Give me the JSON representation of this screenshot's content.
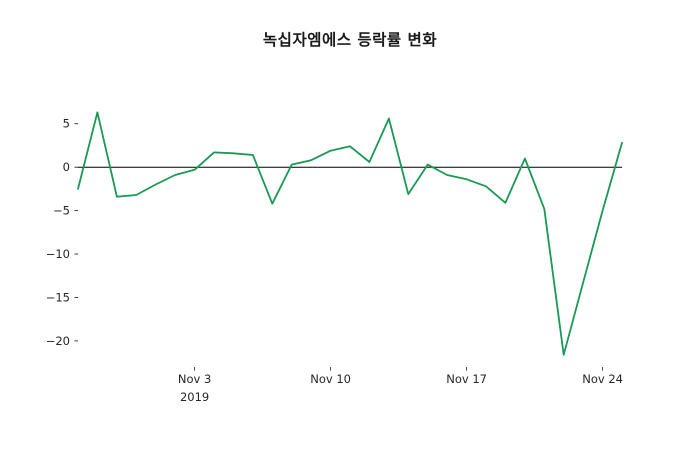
{
  "chart_data": {
    "type": "line",
    "title": "녹십자엠에스 등락률 변화",
    "series": [
      {
        "name": "등락률 (%)",
        "x": [
          "Oct 28",
          "Oct 29",
          "Oct 30",
          "Oct 31",
          "Nov 1",
          "Nov 2",
          "Nov 3",
          "Nov 4",
          "Nov 5",
          "Nov 6",
          "Nov 7",
          "Nov 8",
          "Nov 9",
          "Nov 10",
          "Nov 11",
          "Nov 12",
          "Nov 13",
          "Nov 14",
          "Nov 15",
          "Nov 16",
          "Nov 17",
          "Nov 18",
          "Nov 19",
          "Nov 20",
          "Nov 21",
          "Nov 22",
          "Nov 23",
          "Nov 24",
          "Nov 25"
        ],
        "values": [
          -2.5,
          6.3,
          -3.4,
          -3.2,
          -2.0,
          -0.9,
          -0.3,
          1.7,
          1.6,
          1.4,
          -4.2,
          0.3,
          0.8,
          1.9,
          2.4,
          0.6,
          5.6,
          -3.1,
          0.3,
          -0.9,
          -1.4,
          -2.2,
          -4.1,
          1.0,
          -4.8,
          -21.6,
          -13.3,
          -5.0,
          2.8
        ]
      }
    ],
    "xlabel": "",
    "ylabel": "",
    "xticks": [
      {
        "index": 6,
        "label": "Nov 3",
        "sublabel": "2019"
      },
      {
        "index": 13,
        "label": "Nov 10"
      },
      {
        "index": 20,
        "label": "Nov 17"
      },
      {
        "index": 27,
        "label": "Nov 24"
      }
    ],
    "ytick_values": [
      5,
      0,
      -5,
      -10,
      -15,
      -20
    ],
    "ylim": [
      -23,
      7.5
    ],
    "grid": false,
    "legend": "none",
    "zero_line": true,
    "zero_line_color": "#000000",
    "line_color": "#189a54",
    "text_color": "#262626",
    "background_color": "#ffffff"
  }
}
